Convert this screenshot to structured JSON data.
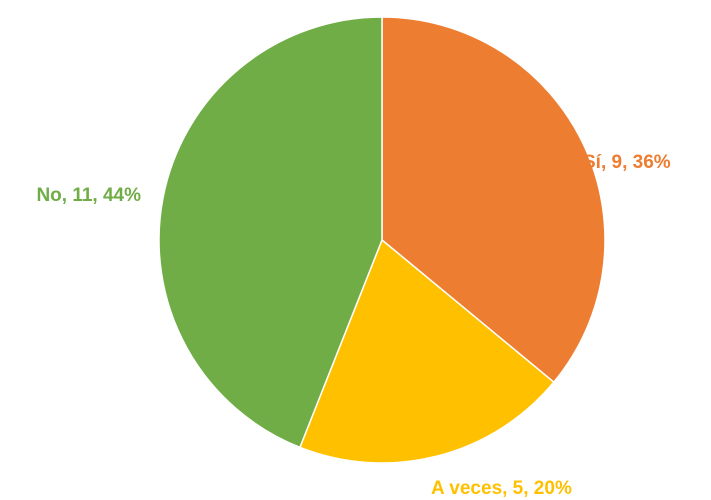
{
  "chart_data": {
    "type": "pie",
    "slices": [
      {
        "label": "Sí",
        "value": 9,
        "percent": "36%",
        "color": "#ED7D31",
        "data_label": "Sí, 9, 36%"
      },
      {
        "label": "A veces",
        "value": 5,
        "percent": "20%",
        "color": "#FFC000",
        "data_label": "A veces, 5, 20%"
      },
      {
        "label": "No",
        "value": 11,
        "percent": "44%",
        "color": "#70AD47",
        "data_label": "No, 11, 44%"
      }
    ],
    "start_angle": "12 o'clock",
    "direction": "clockwise",
    "legend": "none",
    "slice_border_color": "#ffffff"
  }
}
